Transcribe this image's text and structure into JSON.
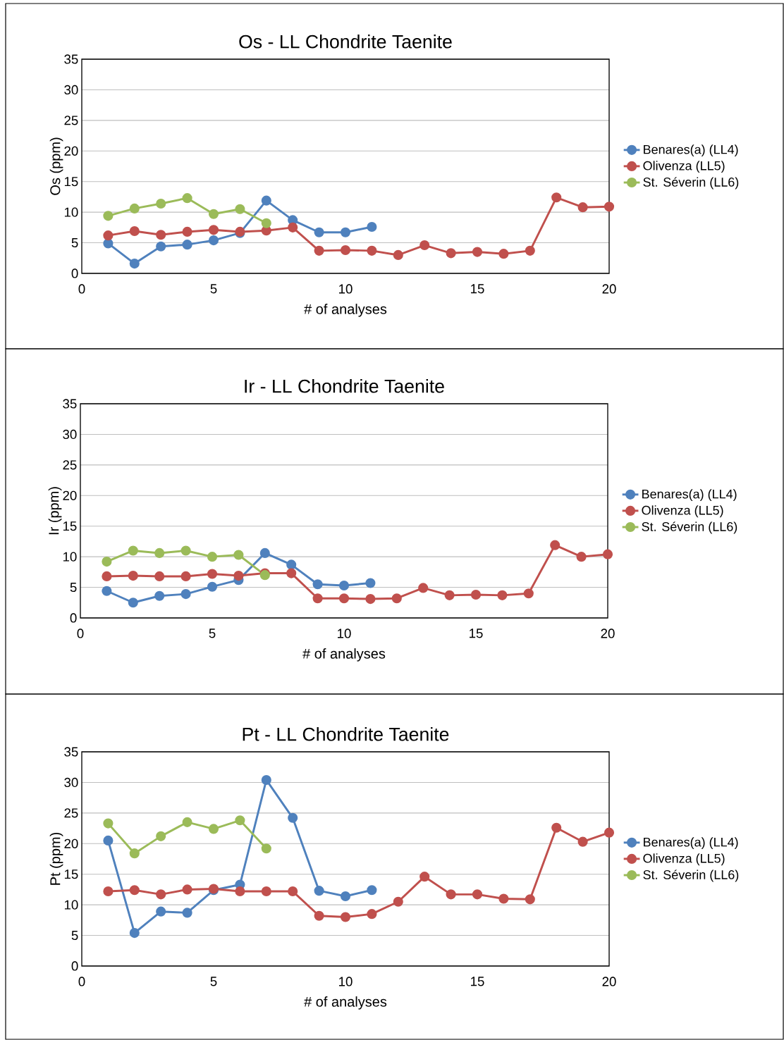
{
  "chart_data": [
    {
      "type": "line",
      "title": "Os - LL Chondrite Taenite",
      "xlabel": "# of analyses",
      "ylabel": "Os (ppm)",
      "x": [
        1,
        2,
        3,
        4,
        5,
        6,
        7,
        8,
        9,
        10,
        11,
        12,
        13,
        14,
        15,
        16,
        17,
        18,
        19,
        20
      ],
      "xlim": [
        0,
        20
      ],
      "xticks": [
        0,
        5,
        10,
        15,
        20
      ],
      "ylim": [
        0,
        35
      ],
      "yticks": [
        0,
        5,
        10,
        15,
        20,
        25,
        30,
        35
      ],
      "grid": "y",
      "legend": "right",
      "marker": "circle",
      "line_style": "solid",
      "series": [
        {
          "name": "Benares(a) (LL4)",
          "color": "#4f81bd",
          "values": [
            4.9,
            1.6,
            4.4,
            4.7,
            5.4,
            6.6,
            11.9,
            8.7,
            6.7,
            6.7,
            7.6,
            null,
            null,
            null,
            null,
            null,
            null,
            null,
            null,
            null
          ]
        },
        {
          "name": "Olivenza (LL5)",
          "color": "#c0504d",
          "values": [
            6.2,
            6.9,
            6.3,
            6.8,
            7.1,
            6.8,
            7.0,
            7.5,
            3.7,
            3.8,
            3.7,
            3.0,
            4.6,
            3.3,
            3.5,
            3.2,
            3.7,
            12.4,
            10.8,
            10.9
          ]
        },
        {
          "name": "St. Séverin (LL6)",
          "color": "#9bbb59",
          "values": [
            9.4,
            10.6,
            11.4,
            12.3,
            9.7,
            10.5,
            8.2,
            null,
            null,
            null,
            null,
            null,
            null,
            null,
            null,
            null,
            null,
            null,
            null,
            null
          ]
        }
      ]
    },
    {
      "type": "line",
      "title": "Ir - LL Chondrite Taenite",
      "xlabel": "# of analyses",
      "ylabel": "Ir (ppm)",
      "x": [
        1,
        2,
        3,
        4,
        5,
        6,
        7,
        8,
        9,
        10,
        11,
        12,
        13,
        14,
        15,
        16,
        17,
        18,
        19,
        20
      ],
      "xlim": [
        0,
        20
      ],
      "xticks": [
        0,
        5,
        10,
        15,
        20
      ],
      "ylim": [
        0,
        35
      ],
      "yticks": [
        0,
        5,
        10,
        15,
        20,
        25,
        30,
        35
      ],
      "grid": "y",
      "legend": "right",
      "marker": "circle",
      "line_style": "solid",
      "series": [
        {
          "name": "Benares(a) (LL4)",
          "color": "#4f81bd",
          "values": [
            4.4,
            2.5,
            3.6,
            3.9,
            5.1,
            6.2,
            10.6,
            8.7,
            5.5,
            5.3,
            5.7,
            null,
            null,
            null,
            null,
            null,
            null,
            null,
            null,
            null
          ]
        },
        {
          "name": "Olivenza (LL5)",
          "color": "#c0504d",
          "values": [
            6.8,
            6.9,
            6.8,
            6.8,
            7.2,
            6.9,
            7.3,
            7.3,
            3.2,
            3.2,
            3.1,
            3.2,
            4.9,
            3.7,
            3.8,
            3.7,
            4.0,
            11.9,
            10.0,
            10.4
          ]
        },
        {
          "name": "St. Séverin (LL6)",
          "color": "#9bbb59",
          "values": [
            9.2,
            11.0,
            10.6,
            11.0,
            10.0,
            10.3,
            7.0,
            null,
            null,
            null,
            null,
            null,
            null,
            null,
            null,
            null,
            null,
            null,
            null,
            null
          ]
        }
      ]
    },
    {
      "type": "line",
      "title": "Pt - LL Chondrite Taenite",
      "xlabel": "# of analyses",
      "ylabel": "Pt (ppm)",
      "x": [
        1,
        2,
        3,
        4,
        5,
        6,
        7,
        8,
        9,
        10,
        11,
        12,
        13,
        14,
        15,
        16,
        17,
        18,
        19,
        20
      ],
      "xlim": [
        0,
        20
      ],
      "xticks": [
        0,
        5,
        10,
        15,
        20
      ],
      "ylim": [
        0,
        35
      ],
      "yticks": [
        0,
        5,
        10,
        15,
        20,
        25,
        30,
        35
      ],
      "grid": "y",
      "legend": "right",
      "marker": "circle",
      "line_style": "solid",
      "series": [
        {
          "name": "Benares(a) (LL4)",
          "color": "#4f81bd",
          "values": [
            20.5,
            5.4,
            8.9,
            8.7,
            12.4,
            13.3,
            30.4,
            24.2,
            12.3,
            11.4,
            12.4,
            null,
            null,
            null,
            null,
            null,
            null,
            null,
            null,
            null
          ]
        },
        {
          "name": "Olivenza (LL5)",
          "color": "#c0504d",
          "values": [
            12.2,
            12.4,
            11.7,
            12.5,
            12.6,
            12.2,
            12.2,
            12.2,
            8.2,
            8.0,
            8.5,
            10.5,
            14.6,
            11.7,
            11.7,
            11.0,
            10.9,
            22.6,
            20.3,
            21.8
          ]
        },
        {
          "name": "St. Séverin (LL6)",
          "color": "#9bbb59",
          "values": [
            23.3,
            18.4,
            21.2,
            23.5,
            22.4,
            23.8,
            19.2,
            null,
            null,
            null,
            null,
            null,
            null,
            null,
            null,
            null,
            null,
            null,
            null,
            null
          ]
        }
      ]
    }
  ]
}
